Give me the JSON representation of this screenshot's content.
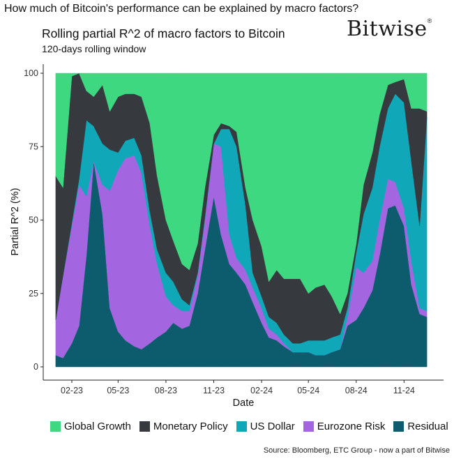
{
  "header": {
    "question": "How much of Bitcoin's performance can be explained by macro factors?",
    "brand": "Bitwise",
    "brand_mark": "®"
  },
  "footer": {
    "source": "Source: Bloomberg, ETC Group - now a part of Bitwise"
  },
  "chart_data": {
    "type": "area",
    "stacked": true,
    "title": "Rolling partial R^2 of macro factors to Bitcoin",
    "subtitle": "120-days rolling window",
    "xlabel": "Date",
    "ylabel": "Partial R^2 (%)",
    "ylim": [
      0,
      100
    ],
    "yticks": [
      0,
      25,
      50,
      75,
      100
    ],
    "xlim": [
      "2022-12-08",
      "2025-01-16"
    ],
    "xticks": [
      {
        "date": "2023-02-01",
        "label": "02-23"
      },
      {
        "date": "2023-05-01",
        "label": "05-23"
      },
      {
        "date": "2023-08-01",
        "label": "08-23"
      },
      {
        "date": "2023-11-01",
        "label": "11-23"
      },
      {
        "date": "2024-02-01",
        "label": "02-24"
      },
      {
        "date": "2024-05-01",
        "label": "05-24"
      },
      {
        "date": "2024-08-01",
        "label": "08-24"
      },
      {
        "date": "2024-11-01",
        "label": "11-24"
      }
    ],
    "grid": false,
    "legend_position": "bottom",
    "x": [
      "2023-01-01",
      "2023-01-15",
      "2023-02-01",
      "2023-02-15",
      "2023-03-01",
      "2023-03-15",
      "2023-04-01",
      "2023-04-15",
      "2023-05-01",
      "2023-05-15",
      "2023-06-01",
      "2023-06-15",
      "2023-07-01",
      "2023-07-15",
      "2023-08-01",
      "2023-08-15",
      "2023-09-01",
      "2023-09-15",
      "2023-10-01",
      "2023-10-15",
      "2023-11-01",
      "2023-11-15",
      "2023-12-01",
      "2023-12-15",
      "2024-01-01",
      "2024-01-15",
      "2024-02-01",
      "2024-02-15",
      "2024-03-01",
      "2024-03-15",
      "2024-04-01",
      "2024-04-15",
      "2024-05-01",
      "2024-05-15",
      "2024-06-01",
      "2024-06-15",
      "2024-07-01",
      "2024-07-15",
      "2024-08-01",
      "2024-08-15",
      "2024-09-01",
      "2024-09-15",
      "2024-10-01",
      "2024-10-15",
      "2024-11-01",
      "2024-11-15",
      "2024-12-01",
      "2024-12-15"
    ],
    "series": [
      {
        "name": "Residual",
        "color": "#0d5c6e",
        "values": [
          4,
          3,
          8,
          14,
          38,
          70,
          52,
          20,
          12,
          9,
          7,
          6,
          8,
          10,
          12,
          15,
          13,
          14,
          25,
          40,
          58,
          45,
          35,
          32,
          28,
          22,
          15,
          10,
          9,
          7,
          5,
          5,
          5,
          4,
          4,
          5,
          6,
          14,
          16,
          20,
          26,
          38,
          54,
          55,
          48,
          28,
          18,
          17
        ]
      },
      {
        "name": "Eurozone Risk",
        "color": "#a366e0",
        "values": [
          12,
          28,
          40,
          48,
          20,
          0,
          10,
          40,
          55,
          62,
          65,
          60,
          40,
          25,
          12,
          6,
          6,
          5,
          6,
          10,
          18,
          30,
          10,
          5,
          5,
          5,
          5,
          3,
          2,
          1,
          0,
          0,
          0,
          0,
          0,
          0,
          0,
          3,
          18,
          12,
          10,
          12,
          10,
          8,
          6,
          8,
          2,
          2
        ]
      },
      {
        "name": "US Dollar",
        "color": "#10a8b8",
        "values": [
          0,
          0,
          1,
          2,
          26,
          12,
          14,
          14,
          6,
          6,
          6,
          6,
          5,
          5,
          8,
          8,
          4,
          2,
          1,
          1,
          0,
          6,
          36,
          38,
          22,
          5,
          4,
          4,
          4,
          3,
          3,
          3,
          4,
          5,
          5,
          5,
          5,
          3,
          5,
          20,
          25,
          25,
          24,
          30,
          36,
          34,
          28,
          66
        ]
      },
      {
        "name": "Monetary Policy",
        "color": "#363a3f",
        "values": [
          49,
          30,
          50,
          36,
          10,
          10,
          20,
          13,
          19,
          16,
          15,
          20,
          30,
          25,
          18,
          14,
          12,
          12,
          10,
          10,
          3,
          2,
          1,
          5,
          6,
          18,
          17,
          12,
          18,
          19,
          22,
          22,
          16,
          18,
          19,
          14,
          7,
          5,
          3,
          10,
          12,
          11,
          8,
          4,
          8,
          18,
          40,
          2
        ]
      },
      {
        "name": "Global Growth",
        "color": "#3dd880",
        "values": [
          35,
          39,
          1,
          0,
          6,
          8,
          4,
          13,
          8,
          7,
          7,
          8,
          17,
          35,
          50,
          57,
          65,
          67,
          58,
          39,
          21,
          17,
          18,
          20,
          39,
          50,
          59,
          71,
          67,
          70,
          70,
          70,
          75,
          73,
          72,
          76,
          82,
          75,
          58,
          38,
          27,
          14,
          4,
          3,
          2,
          12,
          12,
          13
        ]
      }
    ]
  }
}
